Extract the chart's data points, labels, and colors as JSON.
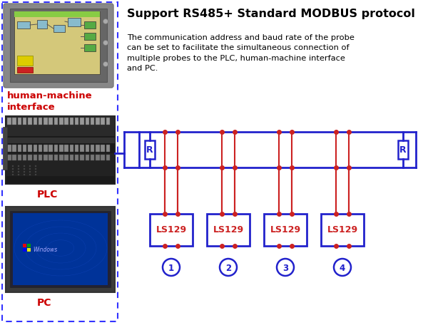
{
  "title": "Support RS485+ Standard MODBUS protocol",
  "body_text": "The communication address and baud rate of the probe\ncan be set to facilitate the simultaneous connection of\nmultiple probes to the PLC, human-machine interface\nand PC.",
  "label_hmi": "human-machine\ninterface",
  "label_plc": "PLC",
  "label_pc": "PC",
  "label_ls129": "LS129",
  "circle_labels": [
    "1",
    "2",
    "3",
    "4"
  ],
  "blue": "#0000CC",
  "red": "#CC0000",
  "bg_color": "#FFFFFF",
  "dashed_box_color": "#3333FF",
  "bus_color": "#2222CC",
  "wire_color": "#CC2222",
  "box_color": "#2222CC",
  "ls129_text_color": "#CC2222",
  "circle_text_color": "#2222CC",
  "hmi_label_color": "#CC0000",
  "plc_label_color": "#CC0000",
  "pc_label_color": "#CC0000",
  "title_color": "#000000",
  "body_color": "#000000"
}
